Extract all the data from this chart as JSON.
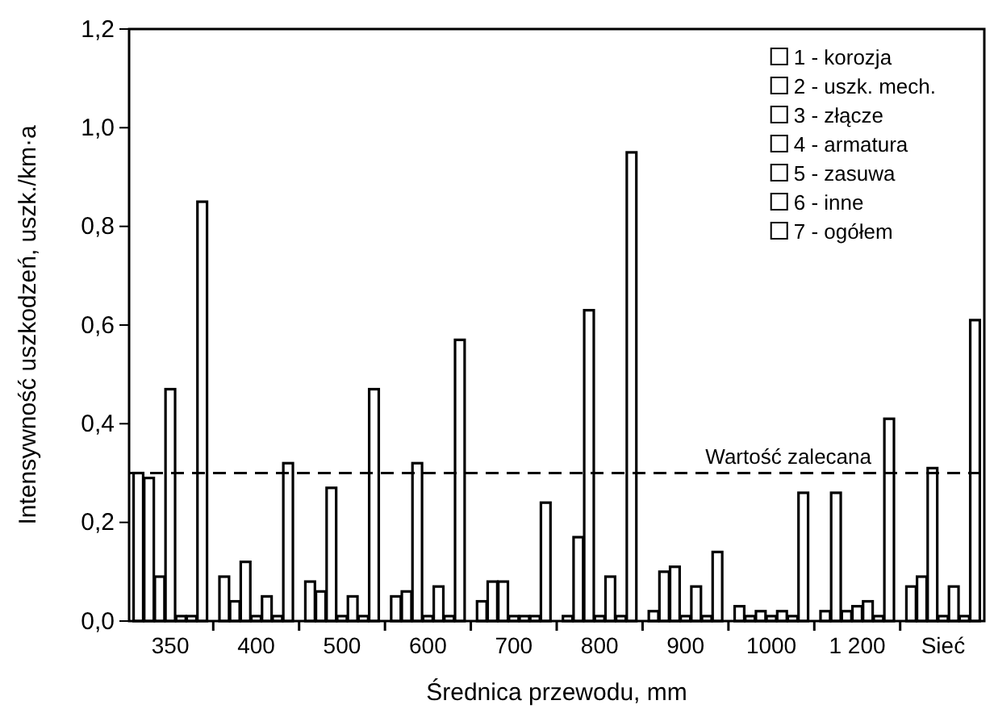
{
  "chart_data": {
    "type": "bar",
    "xlabel": "Średnica przewodu, mm",
    "ylabel": "Intensywność uszkodzeń, uszk./km·a",
    "categories": [
      "350",
      "400",
      "500",
      "600",
      "700",
      "800",
      "900",
      "1000",
      "1 200",
      "Sieć"
    ],
    "series": [
      {
        "name": "1 - korozja",
        "color": "#ffffff",
        "values": [
          0.3,
          0.09,
          0.08,
          0.05,
          0.04,
          0.01,
          0.02,
          0.03,
          0.02,
          0.07
        ]
      },
      {
        "name": "2 - uszk. mech.",
        "color": "#ffffff",
        "values": [
          0.29,
          0.04,
          0.06,
          0.06,
          0.08,
          0.17,
          0.1,
          0.01,
          0.26,
          0.09
        ]
      },
      {
        "name": "3 - złącze",
        "color": "#ffffff",
        "values": [
          0.09,
          0.12,
          0.27,
          0.32,
          0.08,
          0.63,
          0.11,
          0.02,
          0.02,
          0.31
        ]
      },
      {
        "name": "4 - armatura",
        "color": "#ffffff",
        "values": [
          0.47,
          0.01,
          0.01,
          0.01,
          0.01,
          0.01,
          0.01,
          0.01,
          0.03,
          0.01
        ]
      },
      {
        "name": "5 - zasuwa",
        "color": "#ffffff",
        "values": [
          0.01,
          0.05,
          0.05,
          0.07,
          0.01,
          0.09,
          0.07,
          0.02,
          0.04,
          0.07
        ]
      },
      {
        "name": "6 - inne",
        "color": "#ffffff",
        "values": [
          0.01,
          0.01,
          0.01,
          0.01,
          0.01,
          0.01,
          0.01,
          0.01,
          0.01,
          0.01
        ]
      },
      {
        "name": "7 - ogółem",
        "color": "#ffffff",
        "values": [
          0.85,
          0.32,
          0.47,
          0.57,
          0.24,
          0.95,
          0.14,
          0.26,
          0.41,
          0.61
        ]
      }
    ],
    "ylim": [
      0,
      1.2
    ],
    "yticks": [
      {
        "value": 0,
        "label": "0,0"
      },
      {
        "value": 0.2,
        "label": "0,2"
      },
      {
        "value": 0.4,
        "label": "0,4"
      },
      {
        "value": 0.6,
        "label": "0,6"
      },
      {
        "value": 0.8,
        "label": "0,8"
      },
      {
        "value": 1,
        "label": "1,0"
      },
      {
        "value": 1.2,
        "label": "1,2"
      }
    ],
    "ref_lines": [
      {
        "axis": "y",
        "value": 0.3,
        "label": "Wartość zalecana",
        "color": "#000000",
        "line_style": "dashed"
      }
    ],
    "legend": "top right",
    "grid": false
  }
}
